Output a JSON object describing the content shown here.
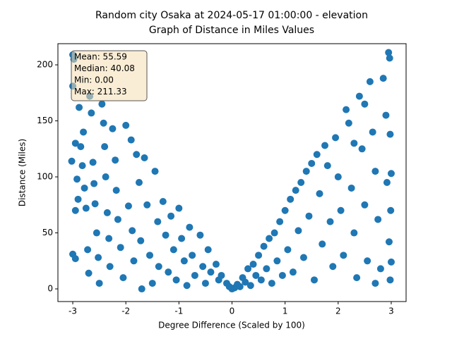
{
  "chart_data": {
    "type": "scatter",
    "title": [
      "Random city Osaka at 2024-05-17 01:00:00  - elevation",
      "Graph of Distance in Miles Values"
    ],
    "xlabel": "Degree Difference (Scaled by 100)",
    "ylabel": "Distance (Miles)",
    "annotation": [
      "Mean: 55.59",
      "Median: 40.08",
      "Min: 0.00",
      "Max: 211.33"
    ],
    "color": "#1f77b4",
    "xlim": [
      -3.28,
      3.28
    ],
    "ylim": [
      -11.3,
      218.9
    ],
    "xticks": [
      -3,
      -2,
      -1,
      0,
      1,
      2,
      3
    ],
    "yticks": [
      0,
      50,
      100,
      150,
      200
    ],
    "x": [
      -3.0,
      -2.98,
      -3.0,
      -2.95,
      -3.02,
      -2.92,
      -2.9,
      -2.95,
      -3.0,
      -2.95,
      -2.88,
      -2.85,
      -2.8,
      -2.82,
      -2.78,
      -2.75,
      -2.72,
      -2.7,
      -2.68,
      -2.65,
      -2.62,
      -2.6,
      -2.58,
      -2.55,
      -2.52,
      -2.5,
      -2.45,
      -2.42,
      -2.4,
      -2.38,
      -2.35,
      -2.32,
      -2.3,
      -2.25,
      -2.2,
      -2.18,
      -2.15,
      -2.1,
      -2.05,
      -2.0,
      -1.95,
      -1.9,
      -1.88,
      -1.85,
      -1.8,
      -1.75,
      -1.72,
      -1.7,
      -1.65,
      -1.6,
      -1.55,
      -1.5,
      -1.45,
      -1.4,
      -1.38,
      -1.3,
      -1.25,
      -1.2,
      -1.15,
      -1.1,
      -1.05,
      -1.0,
      -0.95,
      -0.9,
      -0.85,
      -0.8,
      -0.75,
      -0.7,
      -0.6,
      -0.55,
      -0.5,
      -0.45,
      -0.4,
      -0.3,
      -0.25,
      -0.2,
      -0.1,
      -0.05,
      0,
      0.05,
      0.1,
      0.15,
      0.2,
      0.25,
      0.3,
      0.35,
      0.4,
      0.45,
      0.5,
      0.55,
      0.6,
      0.65,
      0.7,
      0.75,
      0.8,
      0.85,
      0.9,
      0.95,
      1.0,
      1.05,
      1.1,
      1.15,
      1.2,
      1.25,
      1.3,
      1.35,
      1.4,
      1.45,
      1.5,
      1.55,
      1.6,
      1.65,
      1.7,
      1.75,
      1.8,
      1.85,
      1.9,
      1.95,
      2.0,
      2.05,
      2.1,
      2.15,
      2.2,
      2.25,
      2.3,
      2.35,
      2.4,
      2.45,
      2.5,
      2.55,
      2.6,
      2.65,
      2.7,
      2.75,
      2.8,
      2.85,
      2.9,
      2.92,
      2.95,
      2.97,
      2.98,
      3.0,
      2.99,
      2.96,
      3.0,
      2.98,
      2.7,
      2.5,
      2.3
    ],
    "y": [
      209,
      205,
      181,
      130,
      114,
      98,
      80,
      70,
      31,
      27,
      162,
      127,
      140,
      110,
      90,
      72,
      35,
      14,
      172,
      157,
      113,
      94,
      76,
      50,
      28,
      5,
      165,
      148,
      127,
      100,
      68,
      45,
      20,
      143,
      115,
      88,
      62,
      37,
      10,
      146,
      74,
      133,
      52,
      25,
      120,
      95,
      43,
      0,
      117,
      75,
      30,
      5,
      105,
      60,
      20,
      78,
      48,
      15,
      65,
      35,
      8,
      72,
      45,
      25,
      3,
      55,
      30,
      12,
      48,
      20,
      5,
      35,
      15,
      22,
      8,
      12,
      5,
      2,
      0,
      1,
      4,
      2,
      10,
      6,
      18,
      3,
      22,
      12,
      30,
      8,
      38,
      18,
      45,
      5,
      50,
      25,
      60,
      12,
      70,
      35,
      80,
      15,
      88,
      52,
      95,
      28,
      105,
      65,
      112,
      8,
      120,
      85,
      40,
      128,
      110,
      60,
      20,
      135,
      100,
      70,
      30,
      160,
      148,
      90,
      50,
      10,
      172,
      125,
      75,
      25,
      185,
      140,
      105,
      62,
      18,
      188,
      155,
      95,
      211,
      206,
      138,
      103,
      70,
      42,
      24,
      8,
      5,
      165,
      130
    ]
  }
}
